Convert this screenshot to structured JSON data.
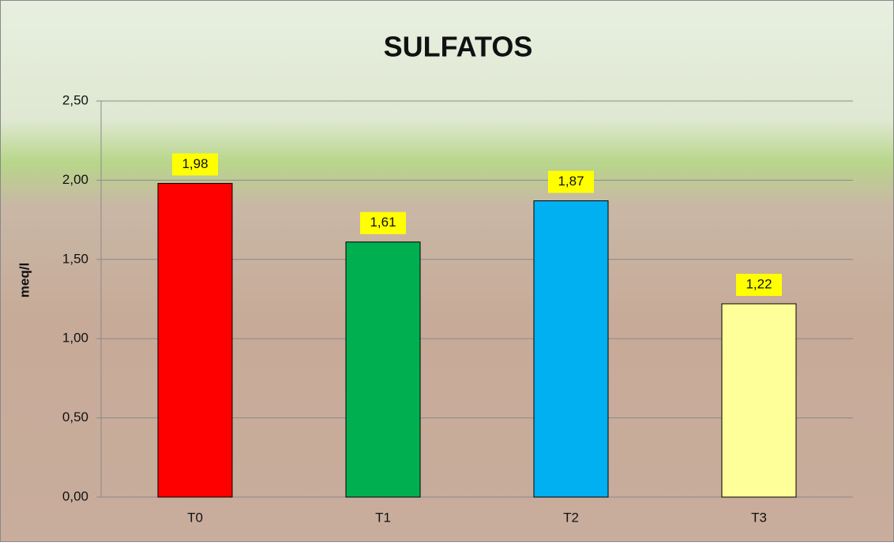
{
  "chart_data": {
    "type": "bar",
    "title": "SULFATOS",
    "y_label": "meq/l",
    "categories": [
      "T0",
      "T1",
      "T2",
      "T3"
    ],
    "values": [
      1.98,
      1.61,
      1.87,
      1.22
    ],
    "value_labels": [
      "1,98",
      "1,61",
      "1,87",
      "1,22"
    ],
    "colors": [
      "#ff0000",
      "#00b050",
      "#00b0f0",
      "#ffff99"
    ],
    "ylim": [
      0,
      2.5
    ],
    "yticks": [
      {
        "value": 0,
        "label": "0,00"
      },
      {
        "value": 0.5,
        "label": "0,50"
      },
      {
        "value": 1,
        "label": "1,00"
      },
      {
        "value": 1.5,
        "label": "1,50"
      },
      {
        "value": 2,
        "label": "2,00"
      },
      {
        "value": 2.5,
        "label": "2,50"
      }
    ],
    "grid": true
  }
}
